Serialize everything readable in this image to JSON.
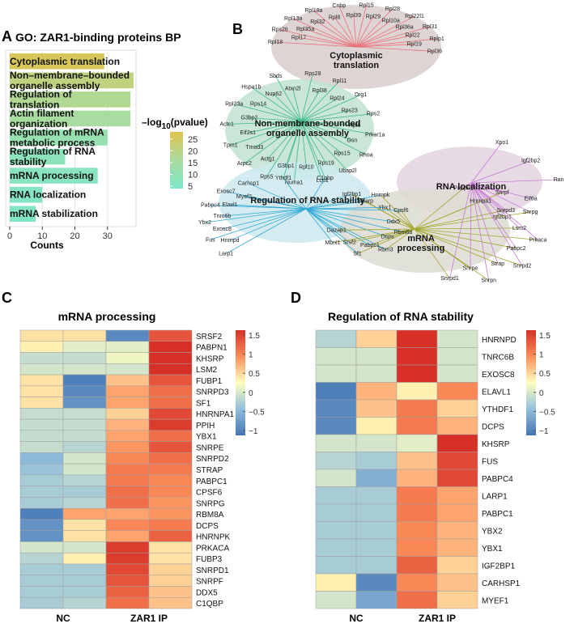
{
  "panel_labels": {
    "a": "A",
    "b": "B",
    "c": "C",
    "d": "D"
  },
  "chart_data": [
    {
      "panel": "A",
      "type": "bar",
      "orientation": "horizontal",
      "title": "GO: ZAR1-binding proteins BP",
      "xlabel": "Counts",
      "xlim": [
        0,
        38
      ],
      "xticks": [
        0,
        10,
        20,
        30
      ],
      "categories": [
        {
          "label": "Cytoplasmic translation",
          "count": 29,
          "neglog10p": 26
        },
        {
          "label": "Non–membrane–bounded organelle assembly",
          "count": 38,
          "neglog10p": 21
        },
        {
          "label": "Regulation of translation",
          "count": 37,
          "neglog10p": 18
        },
        {
          "label": "Actin filament organization",
          "count": 37,
          "neglog10p": 16
        },
        {
          "label": "Regulation of mRNA metabolic process",
          "count": 30,
          "neglog10p": 11
        },
        {
          "label": "Regulation of RNA stability",
          "count": 17,
          "neglog10p": 8
        },
        {
          "label": "mRNA processing",
          "count": 27,
          "neglog10p": 7
        },
        {
          "label": "RNA localization",
          "count": 10,
          "neglog10p": 6
        },
        {
          "label": "mRNA stabilization",
          "count": 8,
          "neglog10p": 5
        }
      ],
      "legend": {
        "title_prefix": "–log",
        "title_sub": "10",
        "title_suffix": "(pvalue)",
        "ticks": [
          25,
          20,
          15,
          10,
          5
        ],
        "range": [
          4,
          28
        ],
        "color_low": "#7ee7c9",
        "color_high": "#e0c34c"
      }
    },
    {
      "panel": "B",
      "type": "network",
      "clusters": [
        {
          "name": "Cytoplasmic translation",
          "color": "#e8707a"
        },
        {
          "name": "Non-membrane-bounded organelle assembly",
          "color": "#3fb88a"
        },
        {
          "name": "RNA localization",
          "color": "#c77ad6"
        },
        {
          "name": "Regulation of RNA stability",
          "color": "#31a9d6"
        },
        {
          "name": "mRNA processing",
          "color": "#a3a62d"
        }
      ],
      "genes": {
        "translation": [
          "Rpl18",
          "Rpl17",
          "Rps26",
          "Rpl35a",
          "Rpl13a",
          "Rpl32",
          "Rpl18a",
          "Rpl8",
          "Cnbp",
          "Rpl39",
          "Rpl15",
          "Rpl29",
          "Rpl28",
          "Rpl10a",
          "Rpl22l1",
          "Rpl36a",
          "Rpl31",
          "Rpl22",
          "Rplp1",
          "Rpl19",
          "Rpl36"
        ],
        "organelle": [
          "Rps28",
          "Rpl38",
          "Rpl11",
          "Rpl24",
          "Drg1",
          "Rps23",
          "Rps2",
          "Rpl6",
          "Prkar1a",
          "Gsn",
          "Rhoa",
          "Rps15",
          "Ubap2l",
          "Rps19",
          "Lcp1",
          "Rpl10",
          "Numa1",
          "G3bp1",
          "Rps5",
          "Actg1",
          "Arpc2",
          "Tmod3",
          "Tpm1",
          "Eif2s1",
          "Actc1",
          "G3bp2",
          "Rpl23a",
          "Rps14",
          "Hspa1b",
          "Nup62",
          "Sbds",
          "Atxn2l"
        ],
        "bridge": [
          "Ythdf1",
          "C1qbp"
        ],
        "localization": [
          "Xpo1",
          "Igf2bp2",
          "Ran",
          "Eif6a",
          "Igf2bp3"
        ],
        "stability": [
          "Larp1",
          "Hnrnpd",
          "Fus",
          "Exosc8",
          "Ybx2",
          "Tnrc6b",
          "Pabpc4",
          "Elavl1",
          "Exosc7",
          "Myef2",
          "Carhsp1"
        ],
        "shared": [
          "Igf2bp1",
          "Kharp",
          "Hnrnpk",
          "Ybx1",
          "Cpsf6",
          "Ddx5",
          "Rbm8a",
          "Dcps",
          "Rbm3",
          "Pabpc1",
          "Sf1",
          "Srsf2",
          "Mbnl1",
          "Dazap1"
        ],
        "processing": [
          "Pabpn1",
          "Hnrnpa1",
          "Snrpf",
          "Snrpd3",
          "Snrpg",
          "Lsm2",
          "Prkaca",
          "Pabpc2",
          "Snrpd2",
          "Strap",
          "Snrpn",
          "Snrpe",
          "Snrpd1"
        ]
      }
    },
    {
      "panel": "C",
      "type": "heatmap",
      "title": "mRNA processing",
      "group_labels": [
        "NC",
        "ZAR1 IP"
      ],
      "legend_ticks": [
        "1.5",
        "1",
        "0.5",
        "0",
        "−0.5",
        "−1"
      ],
      "scale": [
        -1.5,
        1.5
      ],
      "rows": [
        "SRSF2",
        "PABPN1",
        "KHSRP",
        "LSM2",
        "FUBP1",
        "SNRPD3",
        "SF1",
        "HNRNPA1",
        "PPIH",
        "YBX1",
        "SNRPE",
        "SNRPD2",
        "STRAP",
        "PABPC1",
        "CPSF6",
        "SNRPG",
        "RBM8A",
        "DCPS",
        "HNRNPK",
        "PRKACA",
        "FUBP3",
        "SNRPD1",
        "SNRPF",
        "DDX5",
        "C1QBP"
      ],
      "values": [
        [
          0.2,
          0.2,
          -1.3,
          1.2
        ],
        [
          0.1,
          -0.2,
          -0.2,
          1.5
        ],
        [
          -0.4,
          -0.4,
          -0.1,
          1.5
        ],
        [
          -0.3,
          -0.3,
          -0.3,
          1.5
        ],
        [
          0.2,
          -1.4,
          0.4,
          1.2
        ],
        [
          0.2,
          -1.3,
          0.6,
          1.0
        ],
        [
          0.2,
          -1.2,
          0.6,
          1.0
        ],
        [
          -0.4,
          -0.4,
          0.3,
          1.3
        ],
        [
          -0.4,
          -0.4,
          0.5,
          1.4
        ],
        [
          -0.4,
          -0.4,
          0.6,
          1.0
        ],
        [
          -0.4,
          -0.5,
          0.7,
          1.2
        ],
        [
          -0.8,
          -0.3,
          0.8,
          1.0
        ],
        [
          -0.7,
          -0.3,
          0.9,
          0.9
        ],
        [
          -0.6,
          -0.5,
          0.9,
          0.8
        ],
        [
          -0.6,
          -0.6,
          1.0,
          0.8
        ],
        [
          -0.6,
          -0.5,
          1.0,
          0.7
        ],
        [
          -1.4,
          0.6,
          0.6,
          0.7
        ],
        [
          -1.2,
          0.2,
          0.8,
          0.9
        ],
        [
          -1.2,
          0.2,
          0.6,
          1.1
        ],
        [
          -0.3,
          -0.3,
          1.4,
          0.2
        ],
        [
          -0.5,
          0.1,
          1.4,
          0.2
        ],
        [
          -0.6,
          -0.6,
          1.3,
          0.3
        ],
        [
          -0.6,
          -0.6,
          1.2,
          0.3
        ],
        [
          -0.6,
          -0.6,
          1.1,
          0.4
        ],
        [
          -0.6,
          -0.5,
          1.0,
          0.4
        ]
      ]
    },
    {
      "panel": "D",
      "type": "heatmap",
      "title": "Regulation of RNA stability",
      "group_labels": [
        "NC",
        "ZAR1 IP"
      ],
      "legend_ticks": [
        "1.5",
        "1",
        "0.5",
        "0",
        "−0.5",
        "−1"
      ],
      "scale": [
        -1.5,
        1.5
      ],
      "rows": [
        "HNRNPD",
        "TNRC6B",
        "EXOSC8",
        "ELAVL1",
        "YTHDF1",
        "DCPS",
        "KHSRP",
        "FUS",
        "PABPC4",
        "LARP1",
        "PABPC1",
        "YBX2",
        "YBX1",
        "IGF2BP1",
        "CARHSP1",
        "MYEF1"
      ],
      "values": [
        [
          -0.5,
          0.3,
          1.5,
          -0.3
        ],
        [
          -0.3,
          -0.3,
          1.5,
          -0.3
        ],
        [
          -0.3,
          -0.3,
          1.5,
          -0.3
        ],
        [
          -1.4,
          0.5,
          0.1,
          0.8
        ],
        [
          -1.3,
          0.4,
          0.9,
          0.3
        ],
        [
          -1.3,
          0.1,
          0.9,
          0.5
        ],
        [
          -0.3,
          -0.3,
          -0.2,
          1.5
        ],
        [
          -0.5,
          -0.6,
          0.4,
          1.3
        ],
        [
          -0.3,
          -0.9,
          0.5,
          1.3
        ],
        [
          -0.6,
          -0.6,
          0.9,
          0.6
        ],
        [
          -0.6,
          -0.6,
          0.9,
          0.6
        ],
        [
          -0.6,
          -0.6,
          0.8,
          0.5
        ],
        [
          -0.6,
          -0.6,
          0.8,
          0.5
        ],
        [
          -0.6,
          -0.6,
          1.1,
          0.3
        ],
        [
          0.1,
          -1.3,
          0.8,
          0.4
        ],
        [
          -0.3,
          -1.0,
          1.0,
          0.3
        ]
      ]
    }
  ]
}
